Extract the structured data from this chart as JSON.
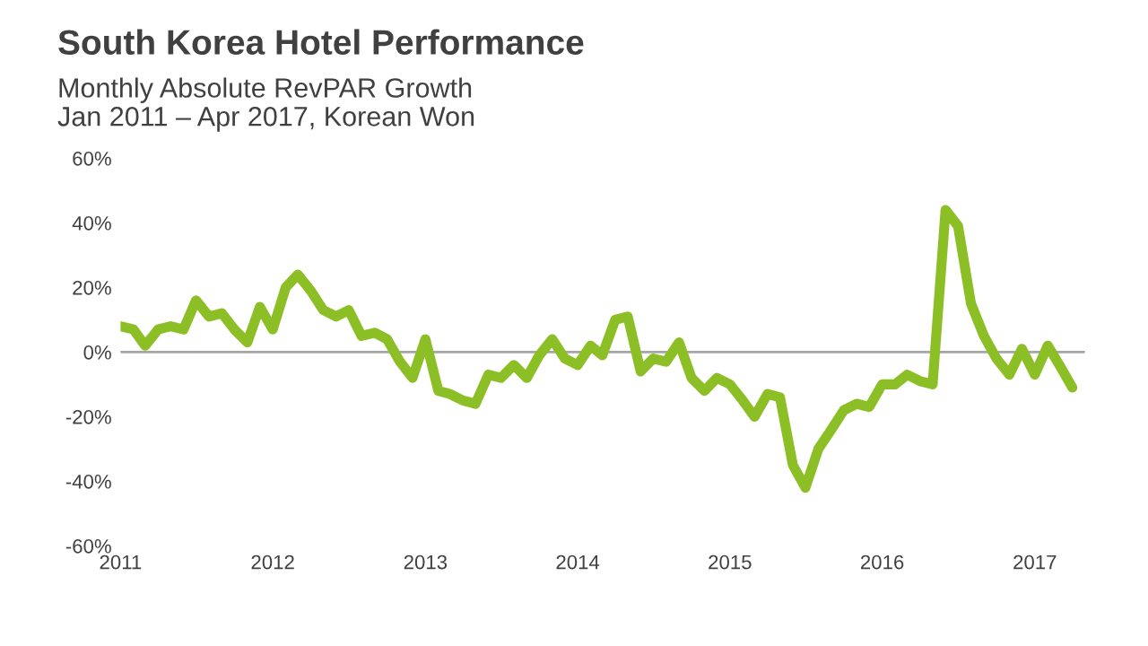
{
  "chart_data": {
    "type": "line",
    "title": "South Korea Hotel Performance",
    "subtitle": "Monthly Absolute RevPAR Growth\nJan 2011 – Apr 2017, Korean Won",
    "x": [
      "2011-01",
      "2011-02",
      "2011-03",
      "2011-04",
      "2011-05",
      "2011-06",
      "2011-07",
      "2011-08",
      "2011-09",
      "2011-10",
      "2011-11",
      "2011-12",
      "2012-01",
      "2012-02",
      "2012-03",
      "2012-04",
      "2012-05",
      "2012-06",
      "2012-07",
      "2012-08",
      "2012-09",
      "2012-10",
      "2012-11",
      "2012-12",
      "2013-01",
      "2013-02",
      "2013-03",
      "2013-04",
      "2013-05",
      "2013-06",
      "2013-07",
      "2013-08",
      "2013-09",
      "2013-10",
      "2013-11",
      "2013-12",
      "2014-01",
      "2014-02",
      "2014-03",
      "2014-04",
      "2014-05",
      "2014-06",
      "2014-07",
      "2014-08",
      "2014-09",
      "2014-10",
      "2014-11",
      "2014-12",
      "2015-01",
      "2015-02",
      "2015-03",
      "2015-04",
      "2015-05",
      "2015-06",
      "2015-07",
      "2015-08",
      "2015-09",
      "2015-10",
      "2015-11",
      "2015-12",
      "2016-01",
      "2016-02",
      "2016-03",
      "2016-04",
      "2016-05",
      "2016-06",
      "2016-07",
      "2016-08",
      "2016-09",
      "2016-10",
      "2016-11",
      "2016-12",
      "2017-01",
      "2017-02",
      "2017-03",
      "2017-04"
    ],
    "series": [
      {
        "color": "#8cbf26",
        "values": [
          8,
          7,
          2,
          7,
          8,
          7,
          16,
          11,
          12,
          7,
          3,
          14,
          7,
          20,
          24,
          19,
          13,
          11,
          13,
          5,
          6,
          4,
          -3,
          -8,
          4,
          -12,
          -13,
          -15,
          -16,
          -7,
          -8,
          -4,
          -8,
          -1,
          4,
          -2,
          -4,
          2,
          -1,
          10,
          11,
          -6,
          -2,
          -3,
          3,
          -8,
          -12,
          -8,
          -10,
          -15,
          -20,
          -13,
          -14,
          -35,
          -42,
          -30,
          -24,
          -18,
          -16,
          -17,
          -10,
          -10,
          -7,
          -9,
          -10,
          44,
          39,
          15,
          5,
          -2,
          -7,
          1,
          -7,
          2,
          -4,
          -11
        ]
      }
    ],
    "xlim": [
      "2011-01",
      "2017-05"
    ],
    "xticks": [
      {
        "value": "2011-01",
        "label": "2011"
      },
      {
        "value": "2012-01",
        "label": "2012"
      },
      {
        "value": "2013-01",
        "label": "2013"
      },
      {
        "value": "2014-01",
        "label": "2014"
      },
      {
        "value": "2015-01",
        "label": "2015"
      },
      {
        "value": "2016-01",
        "label": "2016"
      },
      {
        "value": "2017-01",
        "label": "2017"
      }
    ],
    "ylim": [
      -60,
      60
    ],
    "yticks": [
      {
        "value": -60,
        "label": "-60%"
      },
      {
        "value": -40,
        "label": "-40%"
      },
      {
        "value": -20,
        "label": "-20%"
      },
      {
        "value": 0,
        "label": "0%"
      },
      {
        "value": 20,
        "label": "20%"
      },
      {
        "value": 40,
        "label": "40%"
      },
      {
        "value": 60,
        "label": "60%"
      }
    ],
    "ref_lines": [
      {
        "axis": "y",
        "value": 0,
        "color": "#a6a6a6"
      }
    ],
    "grid": false,
    "legend": false,
    "marker": "none",
    "line_style": "solid"
  }
}
